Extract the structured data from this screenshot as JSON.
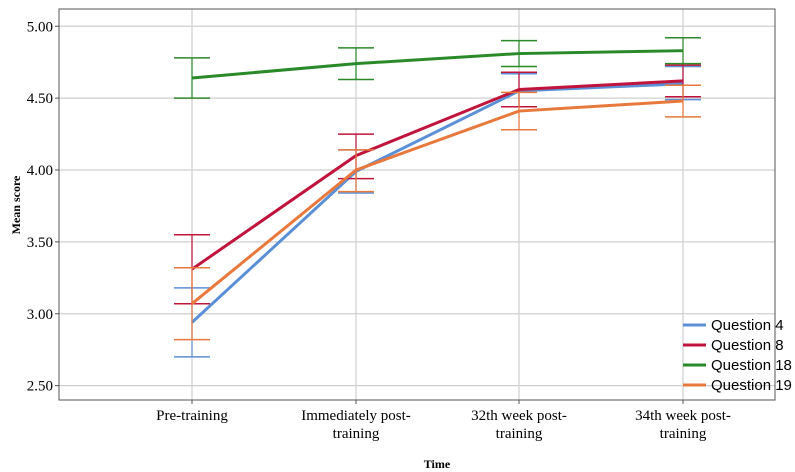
{
  "chart_data": {
    "type": "line",
    "title": "",
    "xlabel": "Time",
    "ylabel": "Mean score",
    "ylim": [
      2.4,
      5.12
    ],
    "yticks": [
      2.5,
      3.0,
      3.5,
      4.0,
      4.5,
      5.0
    ],
    "ytick_labels": [
      "2.50",
      "3.00",
      "3.50",
      "4.00",
      "4.50",
      "5.00"
    ],
    "categories": [
      [
        "Pre-training"
      ],
      [
        "Immediately post-",
        "training"
      ],
      [
        "32th week post-",
        "training"
      ],
      [
        "34th week post-",
        "training"
      ]
    ],
    "grid": true,
    "legend_position": "bottom-right",
    "series": [
      {
        "name": "Question 4",
        "color": "#5b8fd6",
        "values": [
          2.94,
          3.99,
          4.55,
          4.6
        ],
        "err_low": [
          2.7,
          3.84,
          4.44,
          4.49
        ],
        "err_high": [
          3.18,
          4.14,
          4.67,
          4.72
        ]
      },
      {
        "name": "Question 8",
        "color": "#c0143c",
        "values": [
          3.31,
          4.1,
          4.56,
          4.62
        ],
        "err_low": [
          3.07,
          3.94,
          4.44,
          4.51
        ],
        "err_high": [
          3.55,
          4.25,
          4.68,
          4.73
        ]
      },
      {
        "name": "Question 18",
        "color": "#2a8a2a",
        "values": [
          4.64,
          4.74,
          4.81,
          4.83
        ],
        "err_low": [
          4.5,
          4.63,
          4.72,
          4.74
        ],
        "err_high": [
          4.78,
          4.85,
          4.9,
          4.92
        ]
      },
      {
        "name": "Question 19",
        "color": "#e8783c",
        "values": [
          3.07,
          4.0,
          4.41,
          4.48
        ],
        "err_low": [
          2.82,
          3.85,
          4.28,
          4.37
        ],
        "err_high": [
          3.32,
          4.14,
          4.54,
          4.59
        ]
      }
    ]
  }
}
